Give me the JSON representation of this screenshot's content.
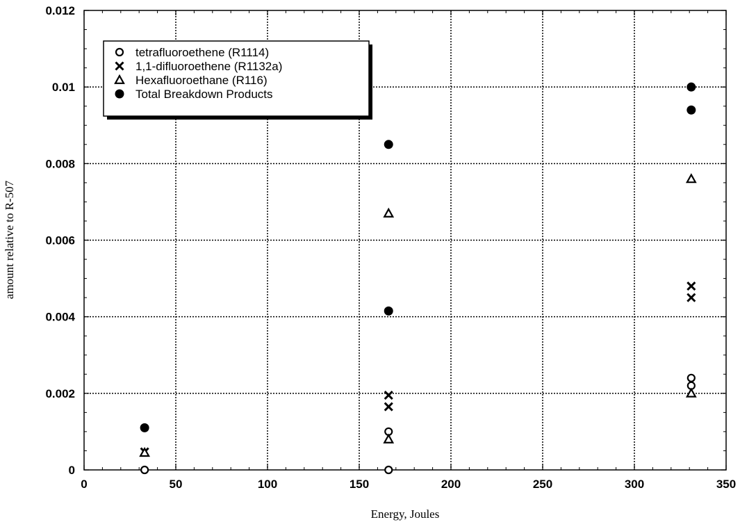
{
  "chart_data": {
    "type": "scatter",
    "title": "",
    "xlabel": "Energy, Joules",
    "ylabel": "amount relative to R-507",
    "xlim": [
      0,
      350
    ],
    "ylim": [
      0,
      0.012
    ],
    "x_ticks": [
      0,
      50,
      100,
      150,
      200,
      250,
      300,
      350
    ],
    "y_ticks": [
      0,
      0.002,
      0.004,
      0.006,
      0.008,
      0.01,
      0.012
    ],
    "x_tick_labels": [
      "0",
      "50",
      "100",
      "150",
      "200",
      "250",
      "300",
      "350"
    ],
    "y_tick_labels": [
      "0",
      "0.002",
      "0.004",
      "0.006",
      "0.008",
      "0.01",
      "0.012"
    ],
    "grid": true,
    "legend_position": "top-left",
    "series": [
      {
        "name": "tetrafluoroethene (R1114)",
        "marker": "open-circle",
        "points": [
          {
            "x": 33,
            "y": 0.0
          },
          {
            "x": 166,
            "y": 0.0
          },
          {
            "x": 166,
            "y": 0.001
          },
          {
            "x": 331,
            "y": 0.0022
          },
          {
            "x": 331,
            "y": 0.0024
          }
        ]
      },
      {
        "name": "1,1-difluoroethene (R1132a)",
        "marker": "x",
        "points": [
          {
            "x": 33,
            "y": 0.00047
          },
          {
            "x": 166,
            "y": 0.00195
          },
          {
            "x": 166,
            "y": 0.00165
          },
          {
            "x": 331,
            "y": 0.0048
          },
          {
            "x": 331,
            "y": 0.0045
          }
        ]
      },
      {
        "name": "Hexafluoroethane (R116)",
        "marker": "open-triangle",
        "points": [
          {
            "x": 33,
            "y": 0.00045
          },
          {
            "x": 166,
            "y": 0.0067
          },
          {
            "x": 166,
            "y": 0.0008
          },
          {
            "x": 331,
            "y": 0.0076
          },
          {
            "x": 331,
            "y": 0.002
          }
        ]
      },
      {
        "name": "Total Breakdown Products",
        "marker": "filled-circle",
        "points": [
          {
            "x": 33,
            "y": 0.0011
          },
          {
            "x": 166,
            "y": 0.0085
          },
          {
            "x": 166,
            "y": 0.00415
          },
          {
            "x": 331,
            "y": 0.01
          },
          {
            "x": 331,
            "y": 0.0094
          }
        ]
      }
    ]
  }
}
